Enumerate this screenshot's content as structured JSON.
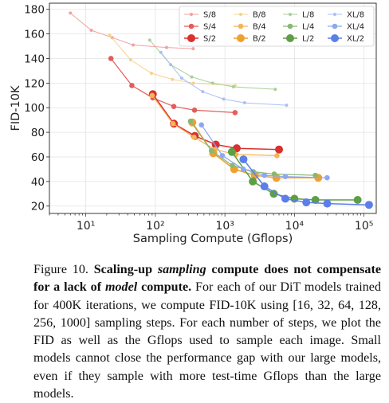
{
  "chart_data": {
    "type": "line",
    "xscale": "log",
    "xlabel": "Sampling Compute (Gflops)",
    "ylabel": "FID-10K",
    "xlim": [
      3,
      150000
    ],
    "ylim": [
      14,
      185
    ],
    "xticks": [
      {
        "value": 10,
        "label": "10¹"
      },
      {
        "value": 100,
        "label": "10²"
      },
      {
        "value": 1000,
        "label": "10³"
      },
      {
        "value": 10000,
        "label": "10⁴"
      },
      {
        "value": 100000,
        "label": "10⁵"
      }
    ],
    "yticks": [
      20,
      40,
      60,
      80,
      100,
      120,
      140,
      160,
      180
    ],
    "grid": true,
    "legend_position": "top-right",
    "series": [
      {
        "name": "S/8",
        "color": "#f2a1a1",
        "size": 1,
        "x": [
          6,
          12,
          24,
          48,
          145,
          350
        ],
        "y": [
          177,
          163,
          157,
          151,
          149,
          148
        ]
      },
      {
        "name": "S/4",
        "color": "#e45c5c",
        "size": 2,
        "x": [
          23,
          46,
          92,
          184,
          366,
          1400
        ],
        "y": [
          140,
          118,
          108,
          101,
          98,
          96
        ]
      },
      {
        "name": "S/2",
        "color": "#d93030",
        "size": 3,
        "x": [
          92,
          185,
          370,
          740,
          1480,
          6000
        ],
        "y": [
          111,
          87,
          77,
          70,
          67,
          66
        ]
      },
      {
        "name": "B/8",
        "color": "#f7d28c",
        "size": 1,
        "x": [
          22,
          44,
          88,
          176,
          353,
          1400
        ],
        "y": [
          159,
          139,
          128,
          123,
          120,
          118
        ]
      },
      {
        "name": "B/4",
        "color": "#f5b553",
        "size": 2,
        "x": [
          90,
          180,
          360,
          720,
          1440,
          5600
        ],
        "y": [
          110,
          87,
          76,
          66,
          62,
          61
        ]
      },
      {
        "name": "B/2",
        "color": "#f0a030",
        "size": 3,
        "x": [
          340,
          680,
          1360,
          2700,
          5500,
          22000
        ],
        "y": [
          88,
          63,
          50,
          45,
          43,
          43
        ]
      },
      {
        "name": "L/8",
        "color": "#a9cf9a",
        "size": 1,
        "x": [
          83,
          166,
          333,
          666,
          1330,
          5300
        ],
        "y": [
          155,
          135,
          125,
          120,
          117,
          115
        ]
      },
      {
        "name": "L/4",
        "color": "#86b873",
        "size": 2,
        "x": [
          320,
          640,
          1280,
          2560,
          5120,
          20000
        ],
        "y": [
          89,
          65,
          53,
          48,
          46,
          45
        ]
      },
      {
        "name": "L/2",
        "color": "#5e9e46",
        "size": 3,
        "x": [
          1260,
          2520,
          5040,
          10000,
          20000,
          81000
        ],
        "y": [
          64,
          40,
          30,
          26,
          25,
          25
        ]
      },
      {
        "name": "XL/8",
        "color": "#aebff5",
        "size": 1,
        "x": [
          120,
          240,
          480,
          960,
          1920,
          7700
        ],
        "y": [
          145,
          124,
          113,
          107,
          104,
          102
        ]
      },
      {
        "name": "XL/4",
        "color": "#8da7f0",
        "size": 2,
        "x": [
          460,
          920,
          1840,
          3700,
          7400,
          29500
        ],
        "y": [
          86,
          61,
          50,
          45,
          44,
          43
        ]
      },
      {
        "name": "XL/2",
        "color": "#5b7fe8",
        "size": 3,
        "x": [
          1850,
          3700,
          7400,
          14800,
          29600,
          118000
        ],
        "y": [
          58,
          36,
          26,
          23,
          22,
          21
        ]
      }
    ]
  },
  "caption": {
    "figure_label": "Figure 10.",
    "bold_1": "Scaling-up ",
    "bold_italic_1": "sampling",
    "bold_2": " compute does not compensate for a lack of ",
    "bold_italic_2": "model",
    "bold_3": " compute.",
    "body": " For each of our DiT models trained for 400K iterations, we compute FID-10K using [16, 32, 64, 128, 256, 1000] sampling steps. For each number of steps, we plot the FID as well as the Gflops used to sample each image. Small models cannot close the performance gap with our large models, even if they sample with more test-time Gflops than the large models."
  }
}
